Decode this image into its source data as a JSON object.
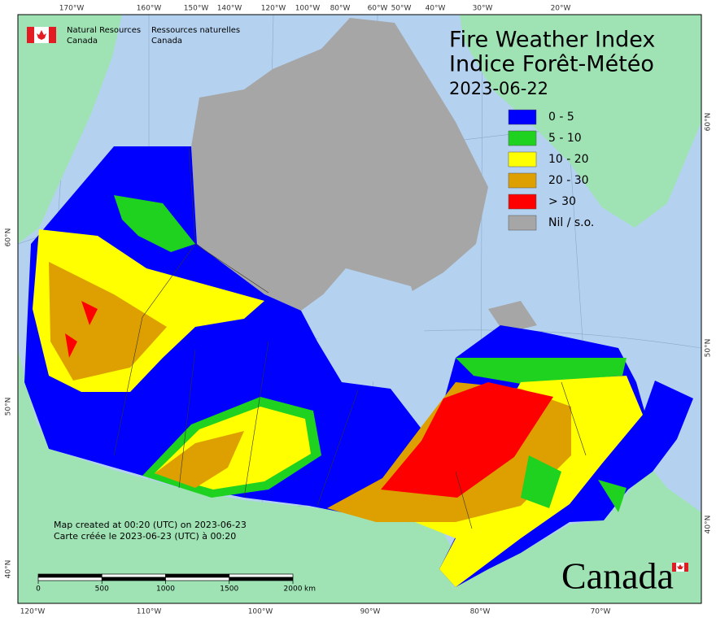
{
  "agency": {
    "en_line1": "Natural Resources",
    "en_line2": "Canada",
    "fr_line1": "Ressources naturelles",
    "fr_line2": "Canada"
  },
  "title": {
    "en": "Fire Weather Index",
    "fr": "Indice Forêt-Météo",
    "date": "2023-06-22"
  },
  "legend": [
    {
      "label": "0 - 5",
      "color": "#0000ff"
    },
    {
      "label": "5 - 10",
      "color": "#1fd21f"
    },
    {
      "label": "10 - 20",
      "color": "#ffff00"
    },
    {
      "label": "20 - 30",
      "color": "#dea000"
    },
    {
      "label": "> 30",
      "color": "#ff0000"
    },
    {
      "label": "Nil / s.o.",
      "color": "#a6a6a6"
    }
  ],
  "graticule": {
    "top": [
      "170°W",
      "160°W",
      "150°W",
      "140°W",
      "120°W",
      "100°W",
      "80°W",
      "60°W",
      "50°W",
      "40°W",
      "30°W",
      "20°W"
    ],
    "bottom": [
      "120°W",
      "110°W",
      "100°W",
      "90°W",
      "80°W",
      "70°W"
    ],
    "left": [
      "60°N",
      "50°N",
      "40°N"
    ],
    "right": [
      "60°N",
      "50°N",
      "40°N"
    ]
  },
  "footnote": {
    "en": "Map created at 00:20 (UTC) on 2023-06-23",
    "fr": "Carte créée le 2023-06-23 (UTC) à 00:20"
  },
  "scale_bar": {
    "ticks": [
      0,
      500,
      1000,
      1500,
      2000
    ],
    "unit": "km"
  },
  "wordmark": "Canada"
}
